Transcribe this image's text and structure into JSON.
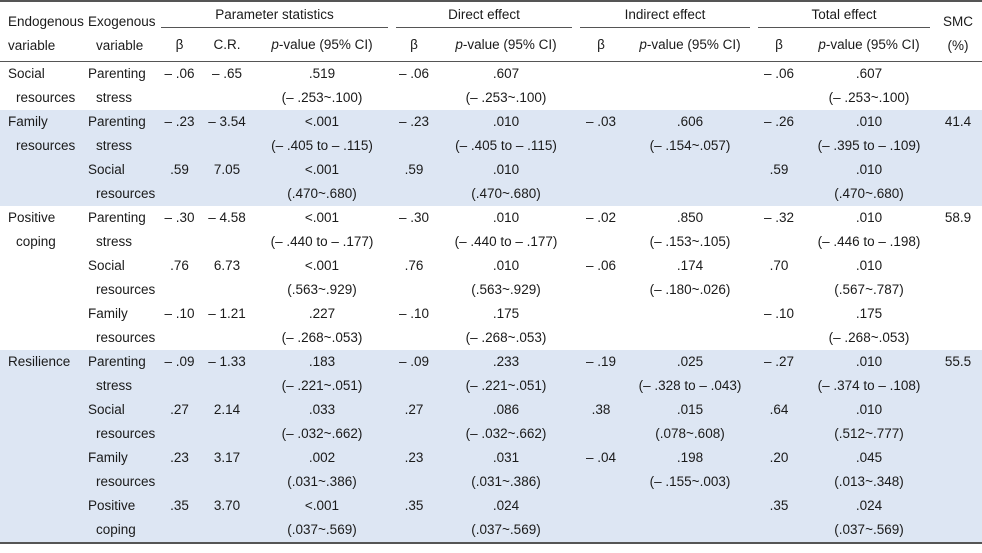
{
  "header": {
    "endogenous_l1": "Endogenous",
    "endogenous_l2": "variable",
    "exogenous_l1": "Exogenous",
    "exogenous_l2": "variable",
    "group_parameter": "Parameter statistics",
    "group_direct": "Direct effect",
    "group_indirect": "Indirect effect",
    "group_total": "Total effect",
    "smc_l1": "SMC",
    "smc_l2": "(%)",
    "beta": "β",
    "cr": "C.R.",
    "p_italic": "p",
    "p_rest": "-value (95% CI)"
  },
  "rows": [
    {
      "endo1": "Social",
      "endo2": "resources",
      "exo1": "Parenting",
      "exo2": "stress",
      "pb": "– .06",
      "cr": "– .65",
      "pv": ".519",
      "pci": "(– .253~.100)",
      "db": "– .06",
      "dv": ".607",
      "dci": "(– .253~.100)",
      "ib": "",
      "iv": "",
      "ici": "",
      "tb": "– .06",
      "tv": ".607",
      "tci": "(– .253~.100)",
      "smc": ""
    },
    {
      "endo1": "Family",
      "endo2": "resources",
      "exo1": "Parenting",
      "exo2": "stress",
      "pb": "– .23",
      "cr": "– 3.54",
      "pv": "<.001",
      "pci": "(– .405 to – .115)",
      "db": "– .23",
      "dv": ".010",
      "dci": "(– .405 to – .115)",
      "ib": "– .03",
      "iv": ".606",
      "ici": "(– .154~.057)",
      "tb": "– .26",
      "tv": ".010",
      "tci": "(– .395 to – .109)",
      "smc": "41.4"
    },
    {
      "endo1": "",
      "endo2": "",
      "exo1": "Social",
      "exo2": "resources",
      "pb": ".59",
      "cr": "7.05",
      "pv": "<.001",
      "pci": "(.470~.680)",
      "db": ".59",
      "dv": ".010",
      "dci": "(.470~.680)",
      "ib": "",
      "iv": "",
      "ici": "",
      "tb": ".59",
      "tv": ".010",
      "tci": "(.470~.680)",
      "smc": ""
    },
    {
      "endo1": "Positive",
      "endo2": "coping",
      "exo1": "Parenting",
      "exo2": "stress",
      "pb": "– .30",
      "cr": "– 4.58",
      "pv": "<.001",
      "pci": "(– .440 to – .177)",
      "db": "– .30",
      "dv": ".010",
      "dci": "(– .440 to – .177)",
      "ib": "– .02",
      "iv": ".850",
      "ici": "(– .153~.105)",
      "tb": "– .32",
      "tv": ".010",
      "tci": "(– .446 to – .198)",
      "smc": "58.9"
    },
    {
      "endo1": "",
      "endo2": "",
      "exo1": "Social",
      "exo2": "resources",
      "pb": ".76",
      "cr": "6.73",
      "pv": "<.001",
      "pci": "(.563~.929)",
      "db": ".76",
      "dv": ".010",
      "dci": "(.563~.929)",
      "ib": "– .06",
      "iv": ".174",
      "ici": "(– .180~.026)",
      "tb": ".70",
      "tv": ".010",
      "tci": "(.567~.787)",
      "smc": ""
    },
    {
      "endo1": "",
      "endo2": "",
      "exo1": "Family",
      "exo2": "resources",
      "pb": "– .10",
      "cr": "– 1.21",
      "pv": ".227",
      "pci": "(– .268~.053)",
      "db": "– .10",
      "dv": ".175",
      "dci": "(– .268~.053)",
      "ib": "",
      "iv": "",
      "ici": "",
      "tb": "– .10",
      "tv": ".175",
      "tci": "(– .268~.053)",
      "smc": ""
    },
    {
      "endo1": "Resilience",
      "endo2": "",
      "exo1": "Parenting",
      "exo2": "stress",
      "pb": "– .09",
      "cr": "– 1.33",
      "pv": ".183",
      "pci": "(– .221~.051)",
      "db": "– .09",
      "dv": ".233",
      "dci": "(– .221~.051)",
      "ib": "– .19",
      "iv": ".025",
      "ici": "(– .328 to – .043)",
      "tb": "– .27",
      "tv": ".010",
      "tci": "(– .374 to – .108)",
      "smc": "55.5"
    },
    {
      "endo1": "",
      "endo2": "",
      "exo1": "Social",
      "exo2": "resources",
      "pb": ".27",
      "cr": "2.14",
      "pv": ".033",
      "pci": "(– .032~.662)",
      "db": ".27",
      "dv": ".086",
      "dci": "(– .032~.662)",
      "ib": ".38",
      "iv": ".015",
      "ici": "(.078~.608)",
      "tb": ".64",
      "tv": ".010",
      "tci": "(.512~.777)",
      "smc": ""
    },
    {
      "endo1": "",
      "endo2": "",
      "exo1": "Family",
      "exo2": "resources",
      "pb": ".23",
      "cr": "3.17",
      "pv": ".002",
      "pci": "(.031~.386)",
      "db": ".23",
      "dv": ".031",
      "dci": "(.031~.386)",
      "ib": "– .04",
      "iv": ".198",
      "ici": "(– .155~.003)",
      "tb": ".20",
      "tv": ".045",
      "tci": "(.013~.348)",
      "smc": ""
    },
    {
      "endo1": "",
      "endo2": "",
      "exo1": "Positive",
      "exo2": "coping",
      "pb": ".35",
      "cr": "3.70",
      "pv": "<.001",
      "pci": "(.037~.569)",
      "db": ".35",
      "dv": ".024",
      "dci": "(.037~.569)",
      "ib": "",
      "iv": "",
      "ici": "",
      "tb": ".35",
      "tv": ".024",
      "tci": "(.037~.569)",
      "smc": ""
    }
  ]
}
